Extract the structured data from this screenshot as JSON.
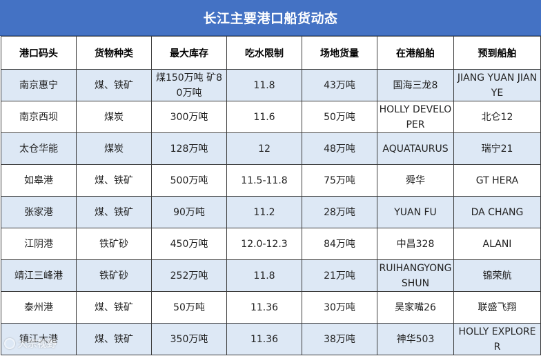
{
  "title": "长江主要港口船货动态",
  "columns": [
    "港口码头",
    "货物种类",
    "最大库存",
    "吃水限制",
    "场地货量",
    "在港船舶",
    "预到船舶"
  ],
  "rows": [
    [
      "南京惠宁",
      "煤、铁矿",
      "煤150万吨 矿80万吨",
      "11.8",
      "43万吨",
      "国海三龙8",
      "JIANG YUAN JIAN YE"
    ],
    [
      "南京西坝",
      "煤炭",
      "300万吨",
      "11.6",
      "50万吨",
      "HOLLY DEVELOPER",
      "北仑12"
    ],
    [
      "太仓华能",
      "煤炭",
      "128万吨",
      "12",
      "48万吨",
      "AQUATAURUS",
      "瑞宁21"
    ],
    [
      "如皋港",
      "煤、铁矿",
      "500万吨",
      "11.5-11.8",
      "75万吨",
      "舜华",
      "GT HERA"
    ],
    [
      "张家港",
      "煤、铁矿",
      "90万吨",
      "11.2",
      "28万吨",
      "YUAN FU",
      "DA CHANG"
    ],
    [
      "江阴港",
      "铁矿砂",
      "450万吨",
      "12.0-12.3",
      "84万吨",
      "中昌328",
      "ALANI"
    ],
    [
      "靖江三峰港",
      "铁矿砂",
      "252万吨",
      "11.8",
      "21万吨",
      "RUIHANGYONGSHUN",
      "锦荣航"
    ],
    [
      "泰州港",
      "煤、铁矿",
      "50万吨",
      "11.36",
      "30万吨",
      "吴家嘴26",
      "联盛飞翔"
    ],
    [
      "镇江大港",
      "煤、铁矿",
      "350万吨",
      "11.36",
      "38万吨",
      "神华503",
      "HOLLY EXPLORER"
    ]
  ],
  "watermark": "大宗视野",
  "colors": {
    "header_bg": "#4472c4",
    "shade": "#dde8f5",
    "border": "#3a3a3a"
  }
}
